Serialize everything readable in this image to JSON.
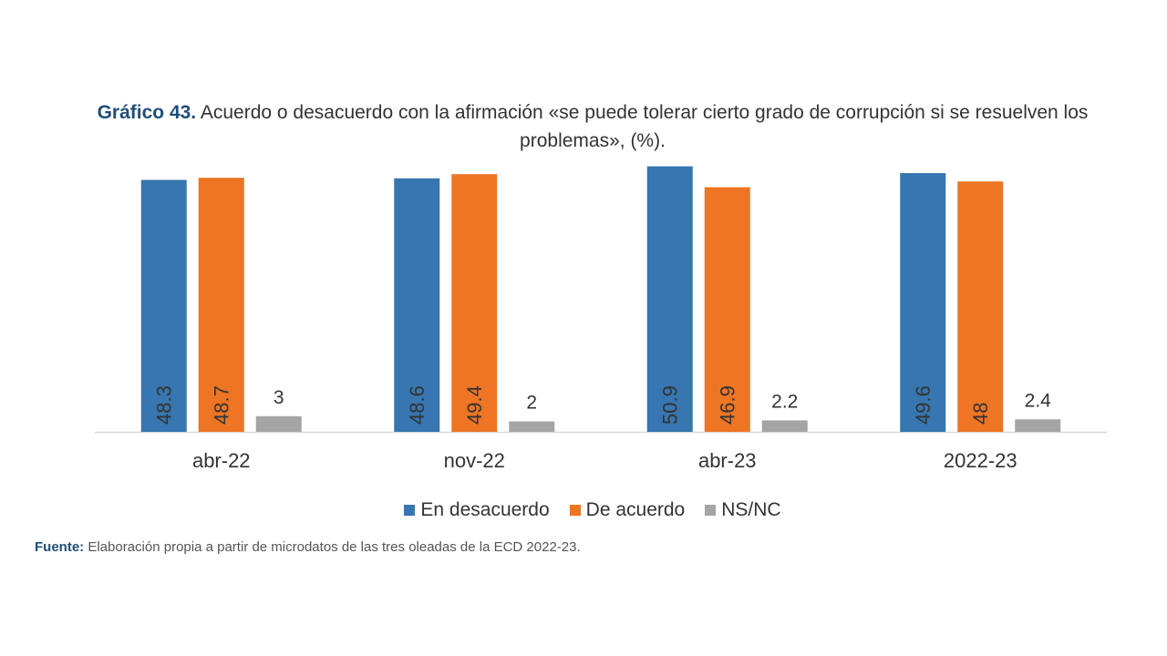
{
  "title": {
    "label": "Gráfico 43.",
    "text": "Acuerdo o desacuerdo con la afirmación «se puede tolerar cierto grado de corrupción si se resuelven los problemas», (%)."
  },
  "source": {
    "label": "Fuente:",
    "text": "Elaboración propia a partir de microdatos de las tres oleadas de la ECD 2022-23."
  },
  "chart_data": {
    "type": "bar",
    "title": "Acuerdo o desacuerdo con la afirmación «se puede tolerar cierto grado de corrupción si se resuelven los problemas», (%).",
    "categories": [
      "abr-22",
      "nov-22",
      "abr-23",
      "2022-23"
    ],
    "series": [
      {
        "name": "En desacuerdo",
        "color": "#3776b0",
        "values": [
          48.3,
          48.6,
          50.9,
          49.6
        ],
        "labels": [
          "48.3",
          "48.6",
          "50.9",
          "49.6"
        ]
      },
      {
        "name": "De acuerdo",
        "color": "#ee7524",
        "values": [
          48.7,
          49.4,
          46.9,
          48
        ],
        "labels": [
          "48.7",
          "49.4",
          "46.9",
          "48"
        ]
      },
      {
        "name": "NS/NC",
        "color": "#a5a5a5",
        "values": [
          3,
          2,
          2.2,
          2.4
        ],
        "labels": [
          "3",
          "2",
          "2.2",
          "2.4"
        ]
      }
    ],
    "xlabel": "",
    "ylabel": "",
    "ylim": [
      0,
      51
    ],
    "grid": false,
    "legend": "bottom"
  }
}
